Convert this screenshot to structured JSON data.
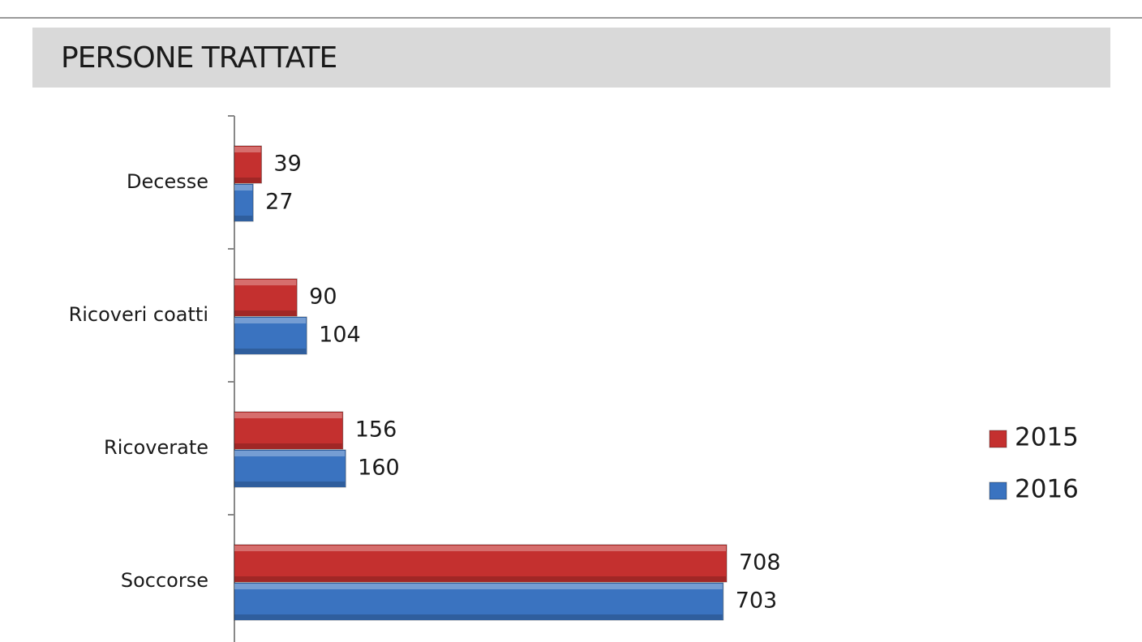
{
  "chart_data": {
    "type": "bar",
    "orientation": "horizontal",
    "title": "PERSONE TRATTATE",
    "categories": [
      "Decesse",
      "Ricoveri coatti",
      "Ricoverate",
      "Soccorse"
    ],
    "series": [
      {
        "name": "2015",
        "color": "#c4302f",
        "values": [
          39,
          90,
          156,
          708
        ]
      },
      {
        "name": "2016",
        "color": "#3a73c0",
        "values": [
          27,
          104,
          160,
          703
        ]
      }
    ],
    "legend": "right"
  }
}
